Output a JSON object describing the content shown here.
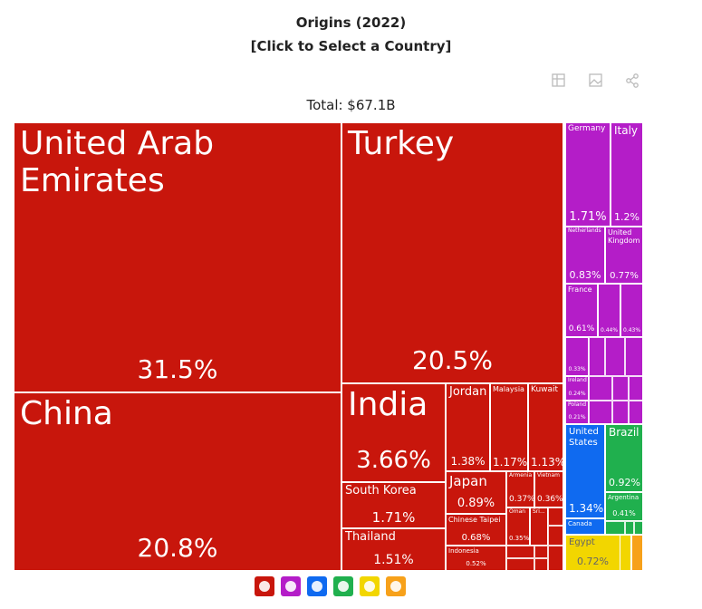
{
  "chart_data": {
    "type": "treemap",
    "title": "Origins (2022)",
    "subtitle": "[Click to Select a Country]",
    "total": "Total: $67.1B",
    "items": [
      {
        "name": "United Arab Emirates",
        "value": 31.5,
        "value_label": "31.5%",
        "color": "#c8160c"
      },
      {
        "name": "China",
        "value": 20.8,
        "value_label": "20.8%",
        "color": "#c8160c"
      },
      {
        "name": "Turkey",
        "value": 20.5,
        "value_label": "20.5%",
        "color": "#c8160c"
      },
      {
        "name": "India",
        "value": 3.66,
        "value_label": "3.66%",
        "color": "#c8160c"
      },
      {
        "name": "South Korea",
        "value": 1.71,
        "value_label": "1.71%",
        "color": "#c8160c"
      },
      {
        "name": "Thailand",
        "value": 1.51,
        "value_label": "1.51%",
        "color": "#c8160c"
      },
      {
        "name": "Jordan",
        "value": 1.38,
        "value_label": "1.38%",
        "color": "#c8160c"
      },
      {
        "name": "Malaysia",
        "value": 1.17,
        "value_label": "1.17%",
        "color": "#c8160c"
      },
      {
        "name": "Kuwait",
        "value": 1.13,
        "value_label": "1.13%",
        "color": "#c8160c"
      },
      {
        "name": "Japan",
        "value": 0.89,
        "value_label": "0.89%",
        "color": "#c8160c"
      },
      {
        "name": "Armenia",
        "value": 0.37,
        "value_label": "0.37%",
        "color": "#c8160c"
      },
      {
        "name": "Vietnam",
        "value": 0.36,
        "value_label": "0.36%",
        "color": "#c8160c"
      },
      {
        "name": "Chinese Taipei",
        "value": 0.68,
        "value_label": "0.68%",
        "color": "#c8160c"
      },
      {
        "name": "Oman",
        "value": 0.35,
        "value_label": "0.35%",
        "color": "#c8160c"
      },
      {
        "name": "Sri...",
        "value": null,
        "value_label": null,
        "color": "#c8160c"
      },
      {
        "name": "Indonesia",
        "value": 0.52,
        "value_label": "0.52%",
        "color": "#c8160c"
      },
      {
        "name": "Germany",
        "value": 1.71,
        "value_label": "1.71%",
        "color": "#b41dc8"
      },
      {
        "name": "Italy",
        "value": 1.2,
        "value_label": "1.2%",
        "color": "#b41dc8"
      },
      {
        "name": "Netherlands",
        "value": 0.83,
        "value_label": "0.83%",
        "color": "#b41dc8"
      },
      {
        "name": "United Kingdom",
        "value": 0.77,
        "value_label": "0.77%",
        "color": "#b41dc8"
      },
      {
        "name": "France",
        "value": 0.61,
        "value_label": "0.61%",
        "color": "#b41dc8"
      },
      {
        "name": null,
        "value": 0.44,
        "value_label": "0.44%",
        "color": "#b41dc8"
      },
      {
        "name": null,
        "value": 0.43,
        "value_label": "0.43%",
        "color": "#b41dc8"
      },
      {
        "name": null,
        "value": 0.33,
        "value_label": "0.33%",
        "color": "#b41dc8"
      },
      {
        "name": "Ireland",
        "value": 0.24,
        "value_label": "0.24%",
        "color": "#b41dc8"
      },
      {
        "name": "Poland",
        "value": 0.21,
        "value_label": "0.21%",
        "color": "#b41dc8"
      },
      {
        "name": "United States",
        "value": 1.34,
        "value_label": "1.34%",
        "color": "#0f6af0"
      },
      {
        "name": "Canada",
        "value": null,
        "value_label": null,
        "color": "#0f6af0"
      },
      {
        "name": "Brazil",
        "value": 0.92,
        "value_label": "0.92%",
        "color": "#20b04e"
      },
      {
        "name": "Argentina",
        "value": 0.41,
        "value_label": "0.41%",
        "color": "#20b04e"
      },
      {
        "name": "Egypt",
        "value": 0.72,
        "value_label": "0.72%",
        "color": "#f2d600"
      }
    ]
  }
}
